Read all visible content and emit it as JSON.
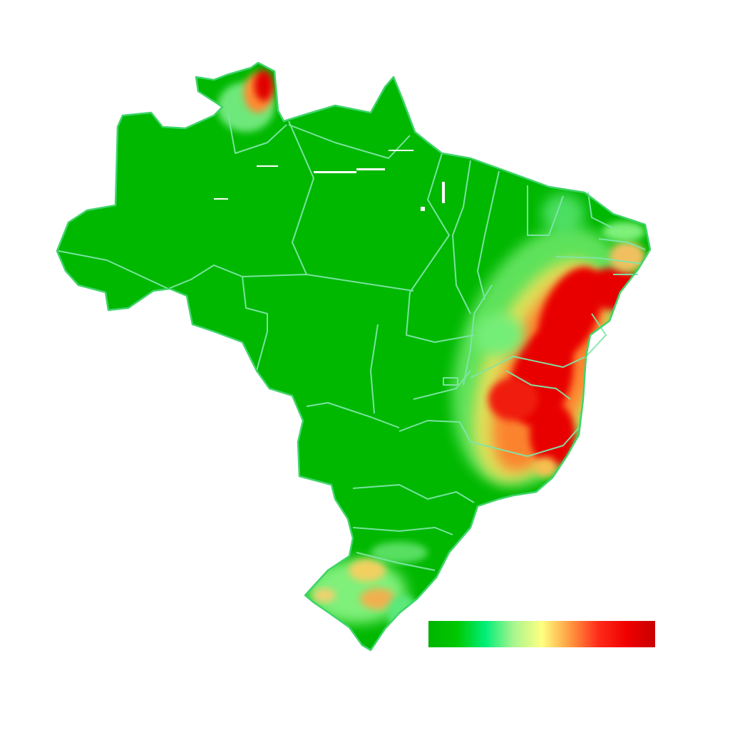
{
  "map": {
    "land_color": "#00b800",
    "border_color": "#7fe6a8",
    "background_color": "#ffffff"
  },
  "legend": {
    "type": "continuous-gradient",
    "labels": [],
    "colors": [
      "#00b400",
      "#00c800",
      "#00ee77",
      "#a8f58f",
      "#ffff80",
      "#ff9a40",
      "#ff2a1a",
      "#f00000",
      "#c80000"
    ]
  }
}
